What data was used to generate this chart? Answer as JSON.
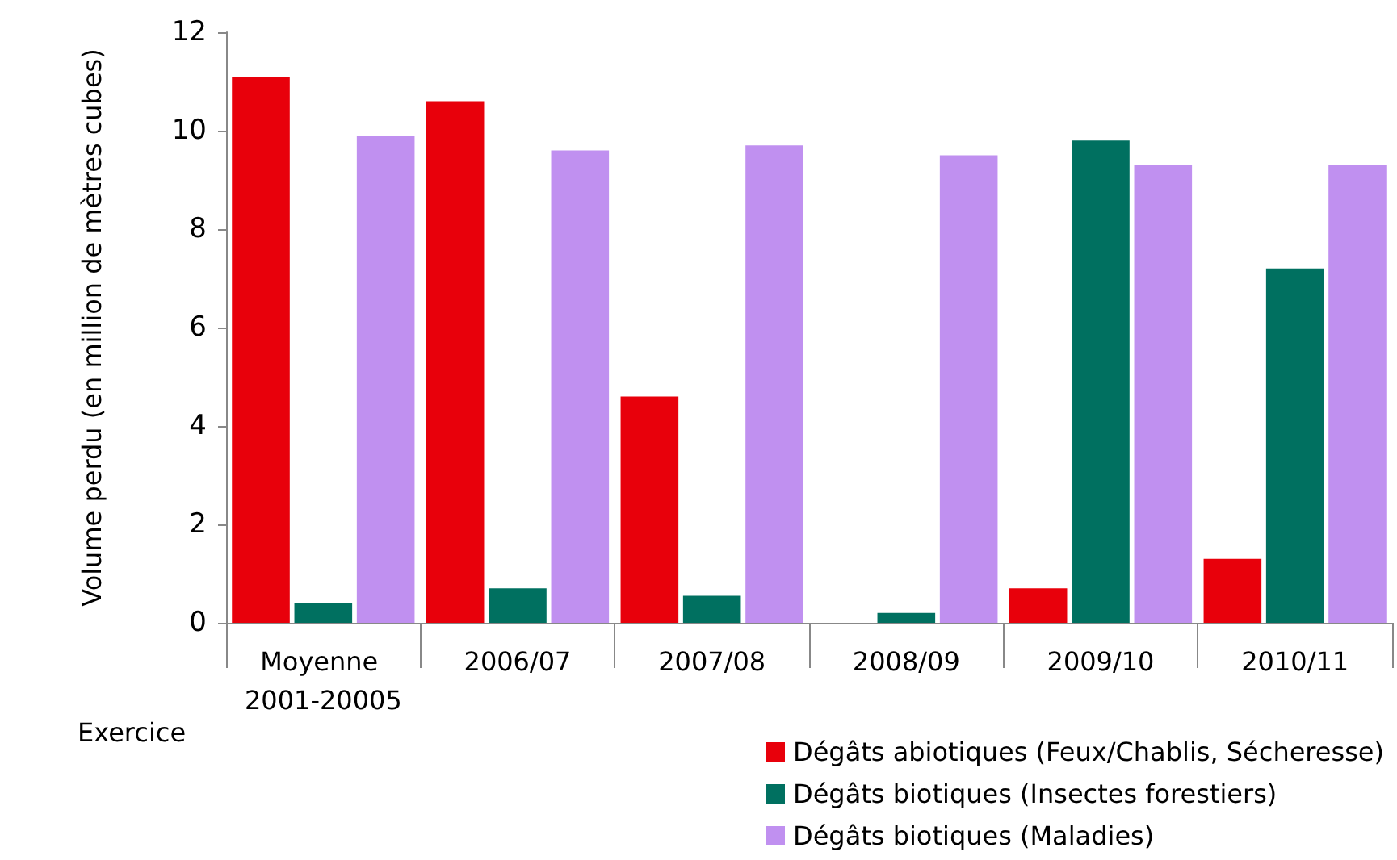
{
  "chart_data": {
    "type": "bar",
    "xlabel": "Exercice",
    "ylabel": "Volume perdu (en million de mètres cubes)",
    "categories": [
      "Moyenne 2001-20005",
      "2006/07",
      "2007/08",
      "2008/09",
      "2009/10",
      "2010/11"
    ],
    "series": [
      {
        "name": "Dégâts abiotiques (Feux/Chablis, Sécheresse)",
        "color": "#e8000b",
        "values": [
          11.1,
          10.6,
          4.6,
          0,
          0.7,
          1.3
        ]
      },
      {
        "name": "Dégâts biotiques (Insectes forestiers)",
        "color": "#007060",
        "values": [
          0.4,
          0.7,
          0.55,
          0.2,
          9.8,
          7.2
        ]
      },
      {
        "name": "Dégâts biotiques (Maladies)",
        "color": "#c090f0",
        "values": [
          9.9,
          9.6,
          9.7,
          9.5,
          9.3,
          9.3
        ]
      }
    ],
    "ylim": [
      0,
      12
    ],
    "yticks": [
      0,
      2,
      4,
      6,
      8,
      10,
      12
    ],
    "grid": false,
    "legend": "bottom right"
  }
}
